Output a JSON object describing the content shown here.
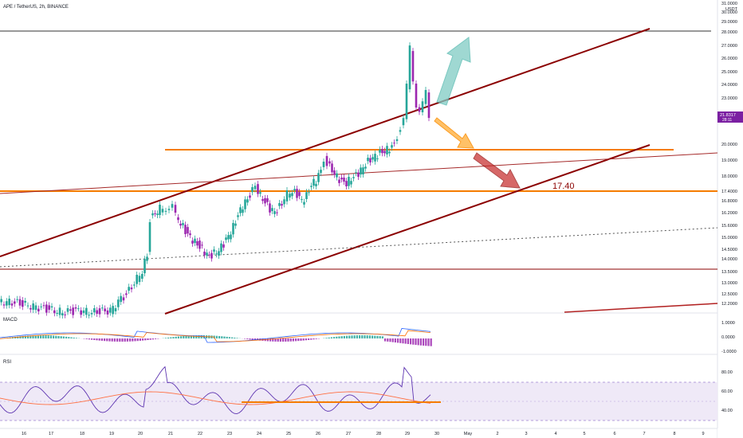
{
  "header": {
    "symbol_title": "APE / TetherUS, 2h, BINANCE"
  },
  "price_axis": {
    "unit_top": "31.0000",
    "currency": "USDT",
    "ticks": [
      "30.0000",
      "29.0000",
      "28.0000",
      "27.0000",
      "26.0000",
      "25.0000",
      "24.0000",
      "23.0000",
      "22.0000",
      "21.0000",
      "20.0000",
      "19.0000",
      "18.0000",
      "17.4000",
      "16.8000",
      "16.2000",
      "15.6000",
      "15.0000",
      "14.5000",
      "14.0000",
      "13.5000",
      "13.0000",
      "12.5000",
      "12.2000"
    ],
    "current_price": "21.8317",
    "countdown": "28:11"
  },
  "annotations": {
    "level_label": "17.40"
  },
  "panes": {
    "macd": {
      "label": "MACD",
      "ticks": [
        "1.0000",
        "0.0000",
        "-1.0000"
      ]
    },
    "rsi": {
      "label": "RSI",
      "ticks": [
        "80.00",
        "60.00",
        "40.00"
      ]
    }
  },
  "time_axis": {
    "labels": [
      "16",
      "17",
      "18",
      "19",
      "20",
      "21",
      "22",
      "23",
      "24",
      "25",
      "26",
      "27",
      "28",
      "29",
      "30",
      "May",
      "2",
      "3",
      "4",
      "5",
      "6",
      "7",
      "8",
      "9"
    ]
  },
  "colors": {
    "up": "#26a69a",
    "down": "#9c27b0",
    "trendline": "#8b0000",
    "level": "#f57c00",
    "rsi_line": "#5e35b1",
    "rsi_ma": "#ff7043",
    "macd_line": "#2962ff",
    "signal_line": "#ff6d00",
    "arrow_up": "#80cbc4",
    "arrow_down_orange": "#ffb74d",
    "arrow_down_red": "#c62828"
  },
  "chart_data": {
    "type": "candlestick",
    "series": [
      {
        "name": "APE / TetherUS",
        "values": [
          [
            16,
            "12.40",
            "12.60",
            "12.20",
            "12.30"
          ],
          [
            17,
            "12.30",
            "12.50",
            "12.10",
            "12.40"
          ]
        ]
      }
    ]
  }
}
